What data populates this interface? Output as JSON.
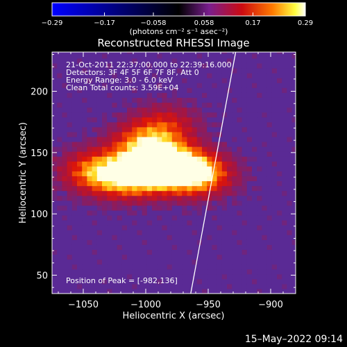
{
  "colorbar": {
    "ticks": [
      "-0.29",
      "-0.17",
      "-0.058",
      "0.058",
      "0.17",
      "0.29"
    ],
    "tick_values": [
      -0.29,
      -0.17,
      -0.058,
      0.058,
      0.17,
      0.29
    ],
    "range": [
      -0.29,
      0.29
    ],
    "units_label": "(photons cm⁻² s⁻¹ asec⁻²)",
    "colormap": [
      "#0000ff",
      "#000000",
      "#7a1e8e",
      "#cc0a10",
      "#ff7a00",
      "#ffff40",
      "#ffffff"
    ]
  },
  "chart_data": {
    "type": "heatmap",
    "title": "Reconstructed RHESSI Image",
    "xlabel": "Heliocentric X (arcsec)",
    "ylabel": "Heliocentric Y (arcsec)",
    "xlim": [
      -1075,
      -880
    ],
    "ylim": [
      35,
      232
    ],
    "x_ticks": [
      -1050,
      -1000,
      -950,
      -900
    ],
    "y_ticks": [
      50,
      100,
      150,
      200
    ],
    "x_tick_labels": [
      "−1050",
      "−1000",
      "−950",
      "−900"
    ],
    "y_tick_labels": [
      "50",
      "100",
      "150",
      "200"
    ],
    "annotations": [
      "21-Oct-2011 22:37:00.000 to 22:39:16.000",
      "Detectors: 3F 4F 5F 6F 7F 8F, Att 0",
      "Energy Range: 3.0 - 6.0 keV",
      "Clean    Total counts: 3.59E+04"
    ],
    "peak_label": "Position of Peak = [-982,136]",
    "peak": [
      -982,
      136
    ],
    "limb_line": [
      [
        -964,
        35
      ],
      [
        -928,
        232
      ]
    ],
    "background_color": "#5a2a95",
    "sources": [
      {
        "x": -982,
        "y": 136,
        "peak": 0.29
      },
      {
        "x": -1015,
        "y": 128,
        "peak": 0.24
      },
      {
        "x": -1045,
        "y": 133,
        "peak": 0.19
      },
      {
        "x": -958,
        "y": 130,
        "peak": 0.22
      },
      {
        "x": -1003,
        "y": 155,
        "peak": 0.2
      },
      {
        "x": -985,
        "y": 172,
        "peak": 0.12
      }
    ]
  },
  "timestamp": "15–May–2022 09:14"
}
